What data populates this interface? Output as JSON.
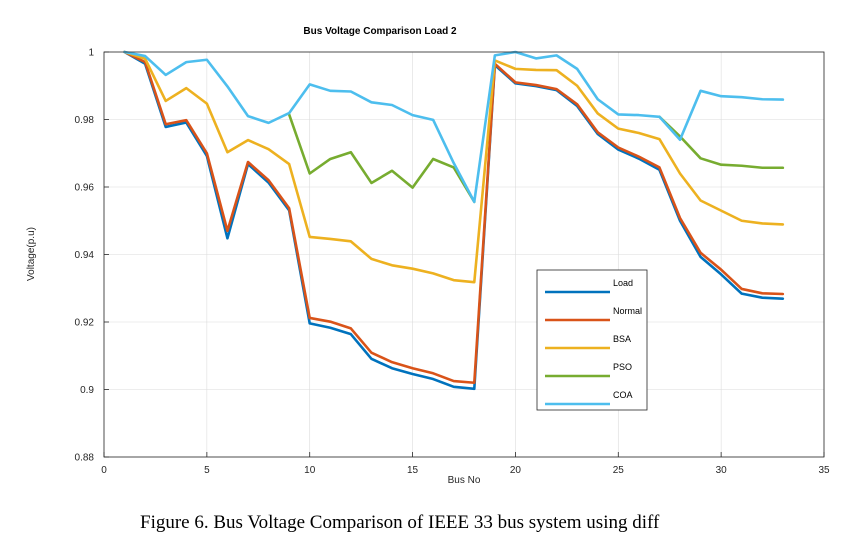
{
  "chart_data": {
    "type": "line",
    "title": "Bus Voltage Comparison Load 2",
    "xlabel": "Bus No",
    "ylabel": "Voltage(p.u)",
    "xlim": [
      0,
      35
    ],
    "ylim": [
      0.88,
      1.0
    ],
    "xticks": [
      0,
      5,
      10,
      15,
      20,
      25,
      30,
      35
    ],
    "yticks": [
      0.88,
      0.9,
      0.92,
      0.94,
      0.96,
      0.98,
      1
    ],
    "xtick_labels": [
      "0",
      "5",
      "10",
      "15",
      "20",
      "25",
      "30",
      "35"
    ],
    "ytick_labels": [
      "0.88",
      "0.9",
      "0.92",
      "0.94",
      "0.96",
      "0.98",
      "1"
    ],
    "grid": true,
    "legend_position": "lower-right",
    "x": [
      1,
      2,
      3,
      4,
      5,
      6,
      7,
      8,
      9,
      10,
      11,
      12,
      13,
      14,
      15,
      16,
      17,
      18,
      19,
      20,
      21,
      22,
      23,
      24,
      25,
      26,
      27,
      28,
      29,
      30,
      31,
      32,
      33
    ],
    "series": [
      {
        "name": "Load",
        "color": "#0072BD",
        "values": [
          1.0,
          0.9965,
          0.9778,
          0.9791,
          0.9692,
          0.9448,
          0.9668,
          0.9613,
          0.9531,
          0.9196,
          0.9183,
          0.9164,
          0.9091,
          0.9063,
          0.9046,
          0.9031,
          0.9008,
          0.9002,
          0.9961,
          0.9907,
          0.9899,
          0.9887,
          0.984,
          0.9757,
          0.9711,
          0.9684,
          0.9651,
          0.95,
          0.9393,
          0.9341,
          0.9284,
          0.9272,
          0.9269
        ]
      },
      {
        "name": "Normal",
        "color": "#D95319",
        "values": [
          1.0,
          0.997,
          0.9786,
          0.9798,
          0.97,
          0.947,
          0.9674,
          0.962,
          0.9537,
          0.9212,
          0.9201,
          0.9181,
          0.9109,
          0.9081,
          0.9063,
          0.9048,
          0.9025,
          0.902,
          0.9965,
          0.991,
          0.9902,
          0.989,
          0.9845,
          0.9762,
          0.9717,
          0.969,
          0.9658,
          0.9508,
          0.9405,
          0.9355,
          0.9298,
          0.9285,
          0.9283
        ]
      },
      {
        "name": "BSA",
        "color": "#EDB120",
        "values": [
          1.0,
          0.998,
          0.9855,
          0.9893,
          0.9847,
          0.9703,
          0.9739,
          0.9712,
          0.9668,
          0.9452,
          0.9446,
          0.9439,
          0.9387,
          0.9368,
          0.9358,
          0.9344,
          0.9324,
          0.9318,
          0.9975,
          0.995,
          0.9947,
          0.9946,
          0.99,
          0.9818,
          0.9773,
          0.976,
          0.9742,
          0.964,
          0.956,
          0.953,
          0.95,
          0.9492,
          0.9489
        ]
      },
      {
        "name": "PSO",
        "color": "#77AC30",
        "values": [
          null,
          null,
          null,
          null,
          null,
          null,
          null,
          null,
          0.9815,
          0.964,
          0.9683,
          0.9703,
          0.9612,
          0.9648,
          0.9598,
          0.9683,
          0.9658,
          0.9556,
          null,
          null,
          null,
          null,
          null,
          null,
          null,
          null,
          0.9808,
          0.975,
          0.9685,
          0.9666,
          0.9663,
          0.9657,
          0.9657
        ]
      },
      {
        "name": "COA",
        "color": "#4DBEEE",
        "values": [
          1.0,
          0.9988,
          0.9932,
          0.997,
          0.9977,
          0.9898,
          0.981,
          0.979,
          0.9819,
          0.9904,
          0.9885,
          0.9883,
          0.9851,
          0.9843,
          0.9813,
          0.9799,
          0.9671,
          0.9556,
          0.999,
          1.0,
          0.9981,
          0.999,
          0.995,
          0.986,
          0.9815,
          0.9813,
          0.9808,
          0.974,
          0.9885,
          0.9869,
          0.9866,
          0.986,
          0.9859
        ]
      }
    ]
  },
  "caption": "Figure 6. Bus Voltage Comparison of IEEE 33 bus system using diff"
}
